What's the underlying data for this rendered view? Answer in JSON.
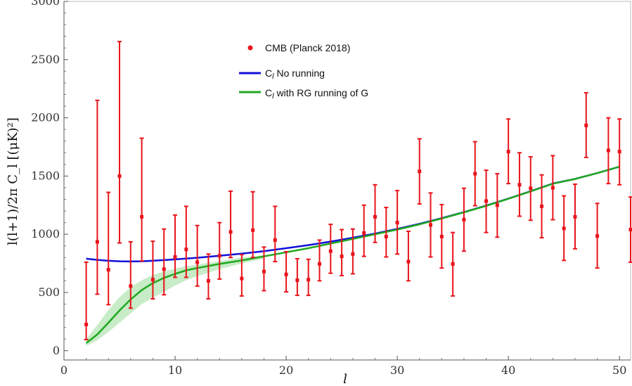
{
  "chart_data": {
    "type": "scatter",
    "xlabel": "l",
    "ylabel": "l(l+1)/2π C_l [(μK)²]",
    "xlim": [
      0,
      51
    ],
    "ylim": [
      -80,
      3000
    ],
    "xticks": [
      0,
      10,
      20,
      30,
      40,
      50
    ],
    "yticks": [
      0,
      500,
      1000,
      1500,
      2000,
      2500,
      3000
    ],
    "legend": {
      "placement": "top-center",
      "entries": [
        {
          "label": "CMB (Planck 2018)",
          "kind": "marker"
        },
        {
          "label_prefix": "C",
          "label_sub": "l",
          "label_rest": " No running",
          "kind": "line"
        },
        {
          "label_prefix": "C",
          "label_sub": "l",
          "label_rest": " with RG running of G",
          "kind": "line"
        }
      ]
    },
    "colors": {
      "data": "#e8141b",
      "no_running": "#1010d8",
      "rg_running": "#1fa81f",
      "band": "#b4e6b4"
    },
    "series": [
      {
        "name": "CMB (Planck 2018)",
        "kind": "errorbar",
        "points": [
          [
            2,
            225,
            95,
            760
          ],
          [
            3,
            935,
            485,
            2150
          ],
          [
            4,
            695,
            395,
            1360
          ],
          [
            5,
            1500,
            925,
            2655
          ],
          [
            6,
            555,
            365,
            935
          ],
          [
            7,
            1150,
            770,
            1825
          ],
          [
            8,
            610,
            445,
            940
          ],
          [
            9,
            700,
            480,
            1045
          ],
          [
            10,
            805,
            630,
            1165
          ],
          [
            11,
            870,
            630,
            1240
          ],
          [
            12,
            760,
            555,
            1075
          ],
          [
            13,
            600,
            445,
            830
          ],
          [
            14,
            815,
            615,
            1100
          ],
          [
            15,
            1020,
            800,
            1370
          ],
          [
            16,
            620,
            470,
            825
          ],
          [
            17,
            1035,
            800,
            1365
          ],
          [
            18,
            680,
            515,
            890
          ],
          [
            19,
            950,
            765,
            1240
          ],
          [
            20,
            655,
            505,
            850
          ],
          [
            21,
            605,
            475,
            790
          ],
          [
            22,
            610,
            475,
            785
          ],
          [
            23,
            745,
            600,
            950
          ],
          [
            24,
            855,
            665,
            1085
          ],
          [
            25,
            810,
            645,
            1040
          ],
          [
            26,
            830,
            660,
            1045
          ],
          [
            27,
            1010,
            810,
            1250
          ],
          [
            28,
            1150,
            930,
            1425
          ],
          [
            29,
            980,
            805,
            1230
          ],
          [
            30,
            1100,
            830,
            1375
          ],
          [
            31,
            765,
            600,
            1025
          ],
          [
            32,
            1540,
            1260,
            1820
          ],
          [
            33,
            1080,
            805,
            1355
          ],
          [
            34,
            980,
            710,
            1255
          ],
          [
            35,
            745,
            470,
            1015
          ],
          [
            36,
            1125,
            855,
            1395
          ],
          [
            37,
            1520,
            1245,
            1795
          ],
          [
            38,
            1285,
            1015,
            1550
          ],
          [
            39,
            1250,
            975,
            1520
          ],
          [
            40,
            1710,
            1435,
            1990
          ],
          [
            41,
            1425,
            1155,
            1700
          ],
          [
            42,
            1395,
            1120,
            1665
          ],
          [
            43,
            1240,
            970,
            1510
          ],
          [
            44,
            1400,
            1125,
            1675
          ],
          [
            45,
            1050,
            775,
            1330
          ],
          [
            46,
            1150,
            875,
            1430
          ],
          [
            47,
            1935,
            1660,
            2215
          ],
          [
            48,
            985,
            710,
            1265
          ],
          [
            49,
            1720,
            1435,
            2000
          ],
          [
            50,
            1710,
            1425,
            1990
          ],
          [
            51,
            1040,
            760,
            1320
          ]
        ]
      },
      {
        "name": "C_l No running",
        "kind": "line",
        "x": [
          2,
          3,
          4,
          5,
          6,
          7,
          8,
          10,
          12,
          14,
          16,
          18,
          20,
          22,
          24,
          26,
          28,
          30,
          32,
          34,
          36,
          38,
          40,
          42,
          44,
          46,
          48,
          50
        ],
        "y": [
          790,
          780,
          772,
          768,
          766,
          768,
          772,
          784,
          798,
          815,
          834,
          855,
          880,
          907,
          937,
          970,
          1006,
          1046,
          1090,
          1138,
          1190,
          1246,
          1306,
          1370,
          1436,
          1475,
          1525,
          1580
        ]
      },
      {
        "name": "C_l with RG running of G",
        "kind": "line",
        "x": [
          2,
          3,
          4,
          5,
          6,
          7,
          8,
          9,
          10,
          11,
          12,
          14,
          16,
          18,
          20,
          22,
          24,
          26,
          28,
          30,
          32,
          34,
          36,
          38,
          40,
          42,
          44,
          46,
          48,
          50
        ],
        "y": [
          65,
          140,
          240,
          345,
          440,
          520,
          580,
          625,
          660,
          690,
          710,
          745,
          775,
          810,
          845,
          880,
          920,
          960,
          1000,
          1040,
          1085,
          1135,
          1188,
          1244,
          1305,
          1368,
          1434,
          1475,
          1525,
          1580
        ]
      },
      {
        "kind": "band",
        "x": [
          2,
          3,
          4,
          5,
          6,
          7,
          8,
          9,
          10,
          11,
          12,
          13,
          14,
          15,
          16,
          17,
          18
        ],
        "lower": [
          40,
          90,
          160,
          240,
          320,
          400,
          455,
          505,
          560,
          605,
          640,
          670,
          700,
          725,
          750,
          770,
          790
        ],
        "upper": [
          100,
          220,
          350,
          460,
          545,
          605,
          650,
          680,
          705,
          725,
          740,
          755,
          770,
          785,
          800,
          810,
          820
        ]
      }
    ]
  }
}
